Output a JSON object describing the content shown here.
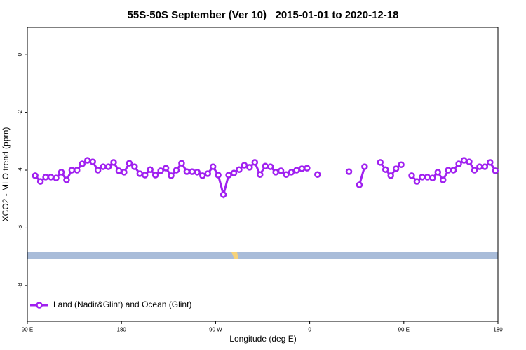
{
  "chart_data": {
    "type": "line",
    "title": "55S-50S September (Ver 10)   2015-01-01 to 2020-12-18",
    "xlabel": "Longitude (deg E)",
    "ylabel": "XCO2 - MLO trend (ppm)",
    "xlim": [
      90,
      540
    ],
    "ylim": [
      -9.24,
      0.95
    ],
    "xticks": [
      {
        "value": 90,
        "label": "90 E"
      },
      180,
      {
        "value": 270,
        "label": "90 W"
      },
      {
        "value": 360,
        "label": "0"
      },
      {
        "value": 450,
        "label": "90 E"
      },
      {
        "value": 540,
        "label": "180"
      }
    ],
    "yticks": [
      0,
      -2,
      -4,
      -6,
      -8
    ],
    "legend": "bottom-left",
    "x": [
      97.5,
      102.5,
      107.5,
      112.5,
      117.5,
      122.5,
      127.5,
      132.5,
      137.5,
      142.5,
      147.5,
      152.5,
      157.5,
      162.5,
      167.5,
      172.5,
      177.5,
      182.5,
      187.5,
      192.5,
      197.5,
      202.5,
      207.5,
      212.5,
      217.5,
      222.5,
      227.5,
      232.5,
      237.5,
      242.5,
      247.5,
      252.5,
      257.5,
      262.5,
      267.5,
      272.5,
      277.5,
      282.5,
      287.5,
      292.5,
      297.5,
      302.5,
      307.5,
      312.5,
      317.5,
      322.5,
      327.5,
      332.5,
      337.5,
      342.5,
      347.5,
      352.5,
      357.5,
      362.5,
      367.5,
      372.5,
      377.5,
      382.5,
      387.5,
      392.5,
      397.5,
      402.5,
      407.5,
      412.5,
      417.5,
      422.5,
      427.5,
      432.5,
      437.5,
      442.5,
      447.5,
      452.5,
      457.5,
      462.5,
      467.5,
      472.5,
      477.5,
      482.5,
      487.5,
      492.5,
      497.5,
      502.5,
      507.5,
      512.5,
      517.5,
      522.5,
      527.5,
      532.5,
      537.5
    ],
    "series": [
      {
        "name": "Land (Nadir&Glint) and Ocean (Glint)",
        "color": "#a020f0",
        "values": [
          -4.19,
          -4.39,
          -4.24,
          -4.24,
          -4.27,
          -4.07,
          -4.34,
          -4.0,
          -4.0,
          -3.78,
          -3.66,
          -3.71,
          -4.0,
          -3.88,
          -3.88,
          -3.73,
          -4.02,
          -4.07,
          -3.76,
          -3.88,
          -4.12,
          -4.17,
          -3.98,
          -4.17,
          -4.02,
          -3.93,
          -4.19,
          -4.0,
          -3.76,
          -4.05,
          -4.05,
          -4.07,
          -4.19,
          -4.12,
          -3.88,
          -4.17,
          -4.85,
          -4.17,
          -4.1,
          -3.98,
          -3.83,
          -3.9,
          -3.73,
          -4.15,
          -3.86,
          -3.88,
          -4.07,
          -4.02,
          -4.15,
          -4.07,
          -4.0,
          -3.95,
          -3.93,
          null,
          -4.15,
          null,
          null,
          null,
          null,
          null,
          -4.05,
          null,
          -4.51,
          -3.88,
          null,
          null,
          -3.73,
          -3.98,
          -4.19,
          -3.95,
          -3.81,
          null,
          -4.19,
          -4.39,
          -4.24,
          -4.24,
          -4.27,
          -4.07,
          -4.34,
          -4.0,
          -4.0,
          -3.78,
          -3.66,
          -3.71,
          -4.0,
          -3.88,
          -3.88,
          -3.73,
          -4.02
        ]
      }
    ]
  }
}
